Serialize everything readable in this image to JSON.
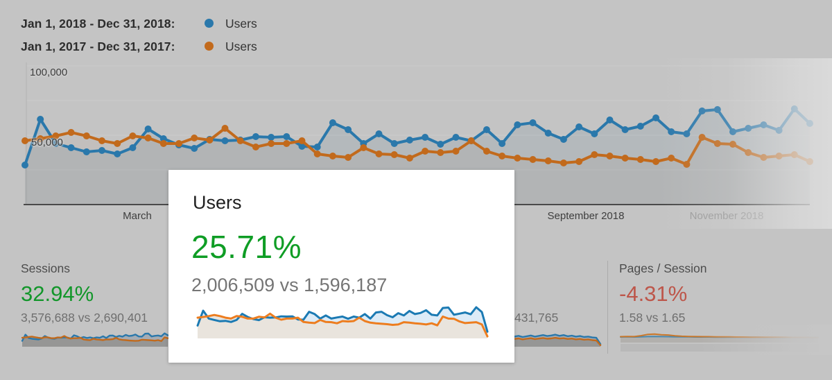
{
  "legend": {
    "rows": [
      {
        "label": "Jan 1, 2018 - Dec 31, 2018:",
        "series_label": "Users",
        "color": "#2a78ab"
      },
      {
        "label": "Jan 1, 2017 - Dec 31, 2017:",
        "series_label": "Users",
        "color": "#c26a1c"
      }
    ]
  },
  "highlight_card": {
    "title": "Users",
    "percent": "25.71%",
    "percent_color": "#0f9d25",
    "comparison": "2,006,509 vs 1,596,187"
  },
  "metrics": {
    "sessions": {
      "title": "Sessions",
      "percent": "32.94%",
      "percent_color": "#12962a",
      "comparison": "3,576,688 vs 2,690,401"
    },
    "middle": {
      "partial_value": "431,765"
    },
    "pages_per_session": {
      "title": "Pages / Session",
      "percent": "-4.31%",
      "percent_color": "#bd564a",
      "comparison": "1.58 vs 1.65"
    }
  },
  "chart_data": [
    {
      "type": "line",
      "title": "Users by week — Jan 1, 2018 - Dec 31, 2018 vs Jan 1, 2017 - Dec 31, 2017",
      "x_unit": "week",
      "x_axis_labels": [
        "March",
        "September 2018",
        "November 2018"
      ],
      "y_tick_labels": [
        "50,000",
        "100,000"
      ],
      "ylim": [
        0,
        100000
      ],
      "grid": true,
      "legend_position": "top-left",
      "series": [
        {
          "name": "Users Jan 1, 2018 - Dec 31, 2018",
          "color": "#2a78ab",
          "values": [
            28500,
            61500,
            44000,
            41000,
            38000,
            39000,
            36500,
            41000,
            54500,
            47500,
            43000,
            40500,
            47000,
            46000,
            46500,
            49000,
            48500,
            49000,
            42000,
            41500,
            59000,
            54000,
            44000,
            51000,
            44000,
            46500,
            48500,
            43500,
            48500,
            46000,
            54000,
            44000,
            57500,
            59000,
            51500,
            47000,
            56000,
            51000,
            61000,
            54000,
            56500,
            62500,
            52500,
            51000,
            67500,
            68500,
            52500,
            55000,
            57500,
            53500,
            69000,
            58500
          ]
        },
        {
          "name": "Users Jan 1, 2017 - Dec 31, 2017",
          "color": "#c26a1c",
          "values": [
            46000,
            47500,
            49500,
            52000,
            49500,
            46000,
            44000,
            49500,
            48000,
            44000,
            44000,
            48000,
            46500,
            55000,
            46000,
            41500,
            44000,
            44000,
            46000,
            36500,
            35000,
            34000,
            41000,
            36500,
            36000,
            33500,
            38500,
            37500,
            38500,
            46000,
            38500,
            35000,
            33500,
            32500,
            31500,
            30000,
            31000,
            36000,
            35000,
            33500,
            32500,
            31000,
            33500,
            29000,
            48500,
            44000,
            43500,
            37500,
            34000,
            35000,
            36000,
            31000
          ]
        }
      ]
    },
    {
      "type": "line",
      "title": "Users scorecard sparkline",
      "series": [
        {
          "name": "Users 2018",
          "color": "#1b7ab3",
          "values": [
            28500,
            61500,
            44000,
            41000,
            38000,
            39000,
            36500,
            41000,
            54500,
            47500,
            43000,
            40500,
            47000,
            46000,
            46500,
            49000,
            48500,
            49000,
            42000,
            41500,
            59000,
            54000,
            44000,
            51000,
            44000,
            46500,
            48500,
            43500,
            48500,
            46000,
            54000,
            44000,
            57500,
            59000,
            51500,
            47000,
            56000,
            51000,
            61000,
            54000,
            56500,
            62500,
            52500,
            51000,
            67500,
            68500,
            52500,
            55000,
            57500,
            53500,
            69000,
            58500,
            15000
          ]
        },
        {
          "name": "Users 2017",
          "color": "#ed7d1f",
          "values": [
            46000,
            47500,
            49500,
            52000,
            49500,
            46000,
            44000,
            49500,
            48000,
            44000,
            44000,
            48000,
            46500,
            55000,
            46000,
            41500,
            44000,
            44000,
            46000,
            36500,
            35000,
            34000,
            41000,
            36500,
            36000,
            33500,
            38500,
            37500,
            38500,
            46000,
            38500,
            35000,
            33500,
            32500,
            31500,
            30000,
            31000,
            36000,
            35000,
            33500,
            32500,
            31000,
            33500,
            29000,
            48500,
            44000,
            43500,
            37500,
            34000,
            35000,
            36000,
            31000,
            4500
          ]
        }
      ]
    },
    {
      "type": "line",
      "title": "Sessions scorecard sparkline",
      "series": [
        {
          "name": "Sessions 2018",
          "color": "#2a78ab",
          "values": [
            30,
            62,
            45,
            41,
            39,
            37,
            42,
            55,
            47,
            43,
            41,
            47,
            46,
            48,
            47,
            42,
            59,
            54,
            45,
            50,
            45,
            48,
            44,
            48,
            46,
            54,
            45,
            57,
            58,
            50,
            56,
            52,
            61,
            55,
            57,
            63,
            53,
            52,
            67,
            68,
            53,
            56,
            58,
            54,
            69,
            59
          ]
        },
        {
          "name": "Sessions 2017",
          "color": "#c26a1c",
          "values": [
            46,
            48,
            50,
            52,
            49,
            46,
            44,
            49,
            48,
            44,
            44,
            48,
            47,
            55,
            46,
            42,
            44,
            44,
            46,
            37,
            35,
            34,
            41,
            37,
            36,
            34,
            38,
            37,
            39,
            46,
            38,
            35,
            34,
            32,
            31,
            30,
            31,
            36,
            35,
            34,
            33,
            31,
            34,
            29,
            48,
            44
          ]
        }
      ]
    },
    {
      "type": "line",
      "title": "Partially hidden scorecard sparkline",
      "series": [
        {
          "name": "2018",
          "color": "#2a78ab",
          "values": [
            52,
            56,
            50,
            54,
            58,
            52,
            56,
            60,
            55,
            58,
            62,
            56,
            60,
            54,
            57,
            52,
            55,
            50,
            52,
            48,
            46,
            14
          ]
        },
        {
          "name": "2017",
          "color": "#c26a1c",
          "values": [
            40,
            43,
            38,
            41,
            44,
            39,
            42,
            45,
            41,
            43,
            46,
            42,
            44,
            40,
            42,
            38,
            40,
            36,
            38,
            34,
            32,
            8
          ]
        }
      ]
    },
    {
      "type": "line",
      "title": "Pages / Session scorecard sparkline",
      "series": [
        {
          "name": "Pages/Session 2018",
          "color": "#4a88ae",
          "values": [
            50,
            51,
            50,
            52,
            54,
            55,
            54,
            53,
            52,
            51,
            51,
            50,
            50,
            50,
            49,
            49,
            49,
            48,
            48,
            48,
            48,
            47,
            47,
            47,
            46,
            46,
            46,
            46,
            45,
            45
          ]
        },
        {
          "name": "Pages/Session 2017",
          "color": "#c9772a",
          "values": [
            53,
            55,
            54,
            62,
            74,
            76,
            70,
            68,
            61,
            57,
            55,
            54,
            53,
            53,
            52,
            51,
            51,
            50,
            50,
            49,
            49,
            49,
            48,
            48,
            48,
            47,
            47,
            47,
            46,
            46
          ]
        }
      ]
    }
  ]
}
